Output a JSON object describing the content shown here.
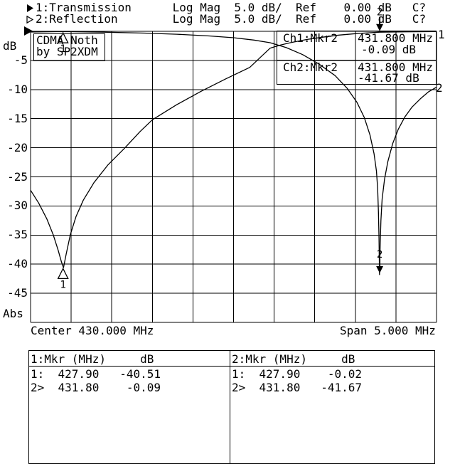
{
  "header": {
    "line1": "1:Transmission      Log Mag  5.0 dB/  Ref    0.00 dB   C?",
    "line2": "2:Reflection        Log Mag  5.0 dB/  Ref    0.00 dB   C?"
  },
  "title_box": {
    "line1": "CDMA Noth",
    "line2": "by SP2XDM"
  },
  "readouts": {
    "ch1": {
      "label": "Ch1:Mkr2",
      "freq": "431.800 MHz",
      "value": "-0.09 dB"
    },
    "ch2": {
      "label": "Ch2:Mkr2",
      "freq": "431.800 MHz",
      "value": "-41.67 dB"
    }
  },
  "footer": {
    "center": "Center 430.000 MHz",
    "span": "Span 5.000 MHz"
  },
  "marker_table": {
    "left": {
      "header": "1:Mkr (MHz)     dB",
      "rows": [
        "1:  427.90   -40.51",
        "2>  431.80    -0.09"
      ]
    },
    "right": {
      "header": "2:Mkr (MHz)     dB",
      "rows": [
        "1:  427.90    -0.02",
        "2>  431.80   -41.67"
      ]
    }
  },
  "chart_data": {
    "type": "line",
    "title": "CDMA Noth by SP2XDM",
    "x_axis": {
      "center_label": "Center 430.000 MHz",
      "span_label": "Span 5.000 MHz",
      "min_mhz": 427.5,
      "max_mhz": 432.5,
      "divisions": 10
    },
    "y_axis": {
      "unit_label": "dB",
      "bottom_label": "Abs",
      "max_db": 0,
      "min_db": -50,
      "scale_db_per_div": 5,
      "tick_labels": [
        "-5",
        "-10",
        "-15",
        "-20",
        "-25",
        "-30",
        "-35",
        "-40",
        "-45"
      ]
    },
    "series": [
      {
        "n": 1,
        "name": "Transmission",
        "format": "Log Mag",
        "scale": "5.0 dB/",
        "ref": "0.00 dB",
        "cal": "C?",
        "points": [
          [
            427.5,
            -27.3
          ],
          [
            427.6,
            -29.5
          ],
          [
            427.7,
            -32.2
          ],
          [
            427.78,
            -35.0
          ],
          [
            427.84,
            -37.6
          ],
          [
            427.88,
            -39.6
          ],
          [
            427.905,
            -40.6
          ],
          [
            427.94,
            -38.2
          ],
          [
            427.99,
            -34.9
          ],
          [
            428.06,
            -31.8
          ],
          [
            428.15,
            -29.0
          ],
          [
            428.28,
            -26.0
          ],
          [
            428.45,
            -23.0
          ],
          [
            428.65,
            -20.2
          ],
          [
            428.85,
            -17.2
          ],
          [
            429.0,
            -15.2
          ],
          [
            429.3,
            -12.6
          ],
          [
            429.6,
            -10.3
          ],
          [
            429.9,
            -8.2
          ],
          [
            430.2,
            -6.2
          ],
          [
            430.45,
            -2.9
          ],
          [
            430.58,
            -2.35
          ],
          [
            430.7,
            -1.95
          ],
          [
            430.9,
            -1.4
          ],
          [
            431.1,
            -1.0
          ],
          [
            431.3,
            -0.65
          ],
          [
            431.5,
            -0.4
          ],
          [
            431.8,
            -0.15
          ],
          [
            432.1,
            -0.08
          ],
          [
            432.5,
            -0.05
          ]
        ]
      },
      {
        "n": 2,
        "name": "Reflection",
        "format": "Log Mag",
        "scale": "5.0 dB/",
        "ref": "0.00 dB",
        "cal": "C?",
        "points": [
          [
            427.5,
            -0.12
          ],
          [
            427.9,
            -0.05
          ],
          [
            428.4,
            -0.15
          ],
          [
            428.9,
            -0.3
          ],
          [
            429.3,
            -0.5
          ],
          [
            429.7,
            -0.8
          ],
          [
            430.0,
            -1.1
          ],
          [
            430.25,
            -1.5
          ],
          [
            430.45,
            -1.95
          ],
          [
            430.65,
            -2.8
          ],
          [
            430.85,
            -4.0
          ],
          [
            431.05,
            -5.6
          ],
          [
            431.25,
            -7.6
          ],
          [
            431.4,
            -9.8
          ],
          [
            431.52,
            -12.2
          ],
          [
            431.61,
            -14.8
          ],
          [
            431.68,
            -17.8
          ],
          [
            431.73,
            -21.0
          ],
          [
            431.76,
            -24.0
          ],
          [
            431.775,
            -27.0
          ],
          [
            431.785,
            -31.0
          ],
          [
            431.792,
            -35.5
          ],
          [
            431.798,
            -41.8
          ],
          [
            431.806,
            -37.0
          ],
          [
            431.815,
            -32.5
          ],
          [
            431.83,
            -28.8
          ],
          [
            431.86,
            -25.4
          ],
          [
            431.9,
            -22.4
          ],
          [
            431.96,
            -19.3
          ],
          [
            432.03,
            -16.8
          ],
          [
            432.11,
            -14.7
          ],
          [
            432.2,
            -13.0
          ],
          [
            432.3,
            -11.6
          ],
          [
            432.4,
            -10.4
          ],
          [
            432.5,
            -9.6
          ]
        ]
      }
    ],
    "markers": [
      {
        "trace": 1,
        "n": "1",
        "mhz": 427.9,
        "db": -40.51,
        "style": "triangle"
      },
      {
        "trace": 1,
        "n": "2",
        "mhz": 431.8,
        "db": -0.09,
        "style": "arrow"
      },
      {
        "trace": 2,
        "n": "1",
        "mhz": 427.9,
        "db": -0.02,
        "style": "triangle"
      },
      {
        "trace": 2,
        "n": "2",
        "mhz": 431.8,
        "db": -41.67,
        "style": "arrow"
      }
    ],
    "colors": {
      "foreground": "#000000",
      "background": "#ffffff"
    }
  }
}
